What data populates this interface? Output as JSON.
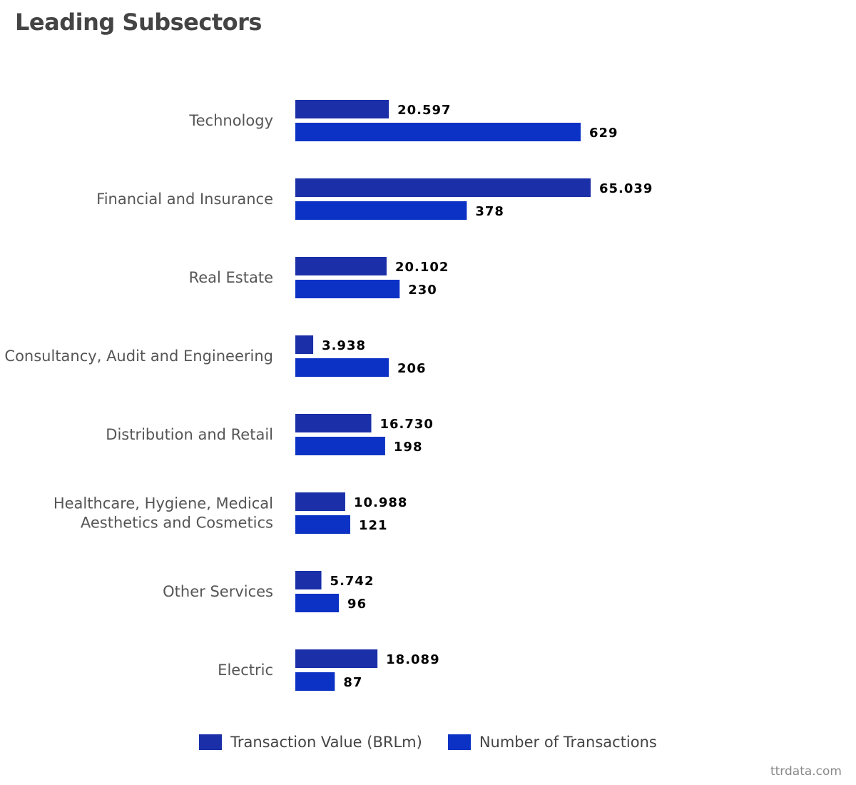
{
  "title": "Leading Subsectors",
  "source": "ttrdata.com",
  "colors": {
    "series1": "#1a2fa8",
    "series2": "#0b32c4",
    "category_text": "#555555",
    "value_text": "#000000"
  },
  "chart_data": {
    "type": "bar",
    "orientation": "horizontal",
    "title": "Leading Subsectors",
    "categories": [
      [
        "Technology"
      ],
      [
        "Financial and Insurance"
      ],
      [
        "Real Estate"
      ],
      [
        "Consultancy, Audit and Engineering"
      ],
      [
        "Distribution and Retail"
      ],
      [
        "Healthcare, Hygiene, Medical",
        "Aesthetics and Cosmetics"
      ],
      [
        "Other Services"
      ],
      [
        "Electric"
      ]
    ],
    "series": [
      {
        "name": "Transaction Value (BRLm)",
        "values": [
          20597,
          65039,
          20102,
          3938,
          16730,
          10988,
          5742,
          18089
        ],
        "labels": [
          "20.597",
          "65.039",
          "20.102",
          "3.938",
          "16.730",
          "10.988",
          "5.742",
          "18.089"
        ]
      },
      {
        "name": "Number of Transactions",
        "values": [
          629,
          378,
          230,
          206,
          198,
          121,
          96,
          87
        ],
        "labels": [
          "629",
          "378",
          "230",
          "206",
          "198",
          "121",
          "96",
          "87"
        ]
      }
    ],
    "legend_position": "bottom",
    "grid": false
  }
}
